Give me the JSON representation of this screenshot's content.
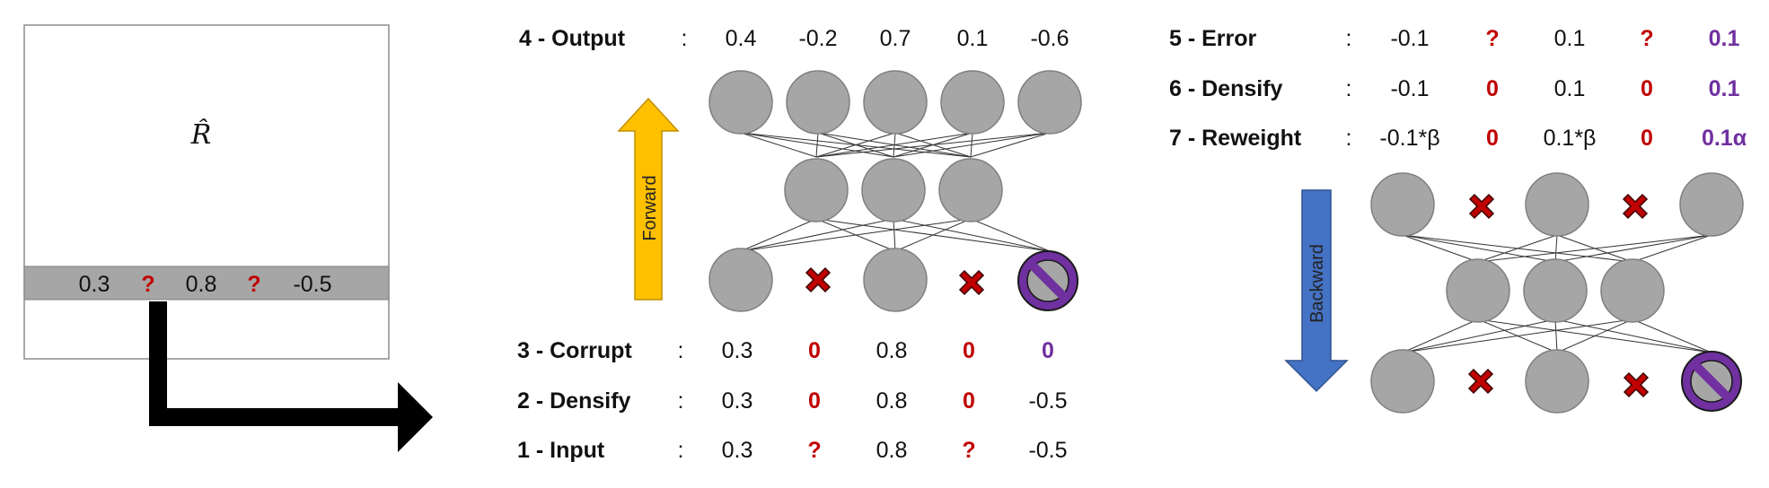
{
  "matrix": {
    "label": "R̂",
    "row_values": [
      "0.3",
      "?",
      "0.8",
      "?",
      "-0.5"
    ]
  },
  "forward_arrow_label": "Forward",
  "backward_arrow_label": "Backward",
  "colon": ":",
  "left_rows": [
    {
      "label": "4 - Output",
      "values": [
        "0.4",
        "-0.2",
        "0.7",
        "0.1",
        "-0.6"
      ]
    },
    {
      "label": "3 - Corrupt",
      "values": [
        "0.3",
        "0",
        "0.8",
        "0",
        "0"
      ]
    },
    {
      "label": "2 - Densify",
      "values": [
        "0.3",
        "0",
        "0.8",
        "0",
        "-0.5"
      ]
    },
    {
      "label": "1 - Input",
      "values": [
        "0.3",
        "?",
        "0.8",
        "?",
        "-0.5"
      ]
    }
  ],
  "right_rows": [
    {
      "label": "5 - Error",
      "values": [
        "-0.1",
        "?",
        "0.1",
        "?",
        "0.1"
      ]
    },
    {
      "label": "6 - Densify",
      "values": [
        "-0.1",
        "0",
        "0.1",
        "0",
        "0.1"
      ]
    },
    {
      "label": "7 - Reweight",
      "values": [
        "-0.1*β",
        "0",
        "0.1*β",
        "0",
        "0.1α"
      ]
    }
  ],
  "colors": {
    "node": "#a6a6a6",
    "red": "#c00000",
    "purple": "#7030a0",
    "forward_arrow": "#ffc000",
    "backward_arrow": "#4472c4"
  }
}
